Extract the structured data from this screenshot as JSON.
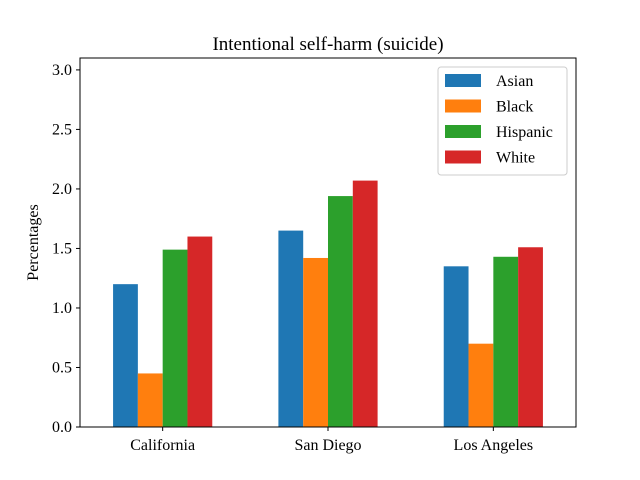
{
  "chart_data": {
    "type": "bar",
    "title": "Intentional self-harm (suicide)",
    "xlabel": "",
    "ylabel": "Percentages",
    "categories": [
      "California",
      "San Diego",
      "Los Angeles"
    ],
    "ylim": [
      0,
      3.1
    ],
    "yticks": [
      "0.0",
      "0.5",
      "1.0",
      "1.5",
      "2.0",
      "2.5",
      "3.0"
    ],
    "legend_position": "top-right",
    "grid": false,
    "series": [
      {
        "name": "Asian",
        "color": "#1f77b4",
        "values": [
          1.2,
          1.65,
          1.35
        ]
      },
      {
        "name": "Black",
        "color": "#ff7f0e",
        "values": [
          0.45,
          1.42,
          0.7
        ]
      },
      {
        "name": "Hispanic",
        "color": "#2ca02c",
        "values": [
          1.49,
          1.94,
          1.43
        ]
      },
      {
        "name": "White",
        "color": "#d62728",
        "values": [
          1.6,
          2.07,
          1.51
        ]
      }
    ]
  }
}
